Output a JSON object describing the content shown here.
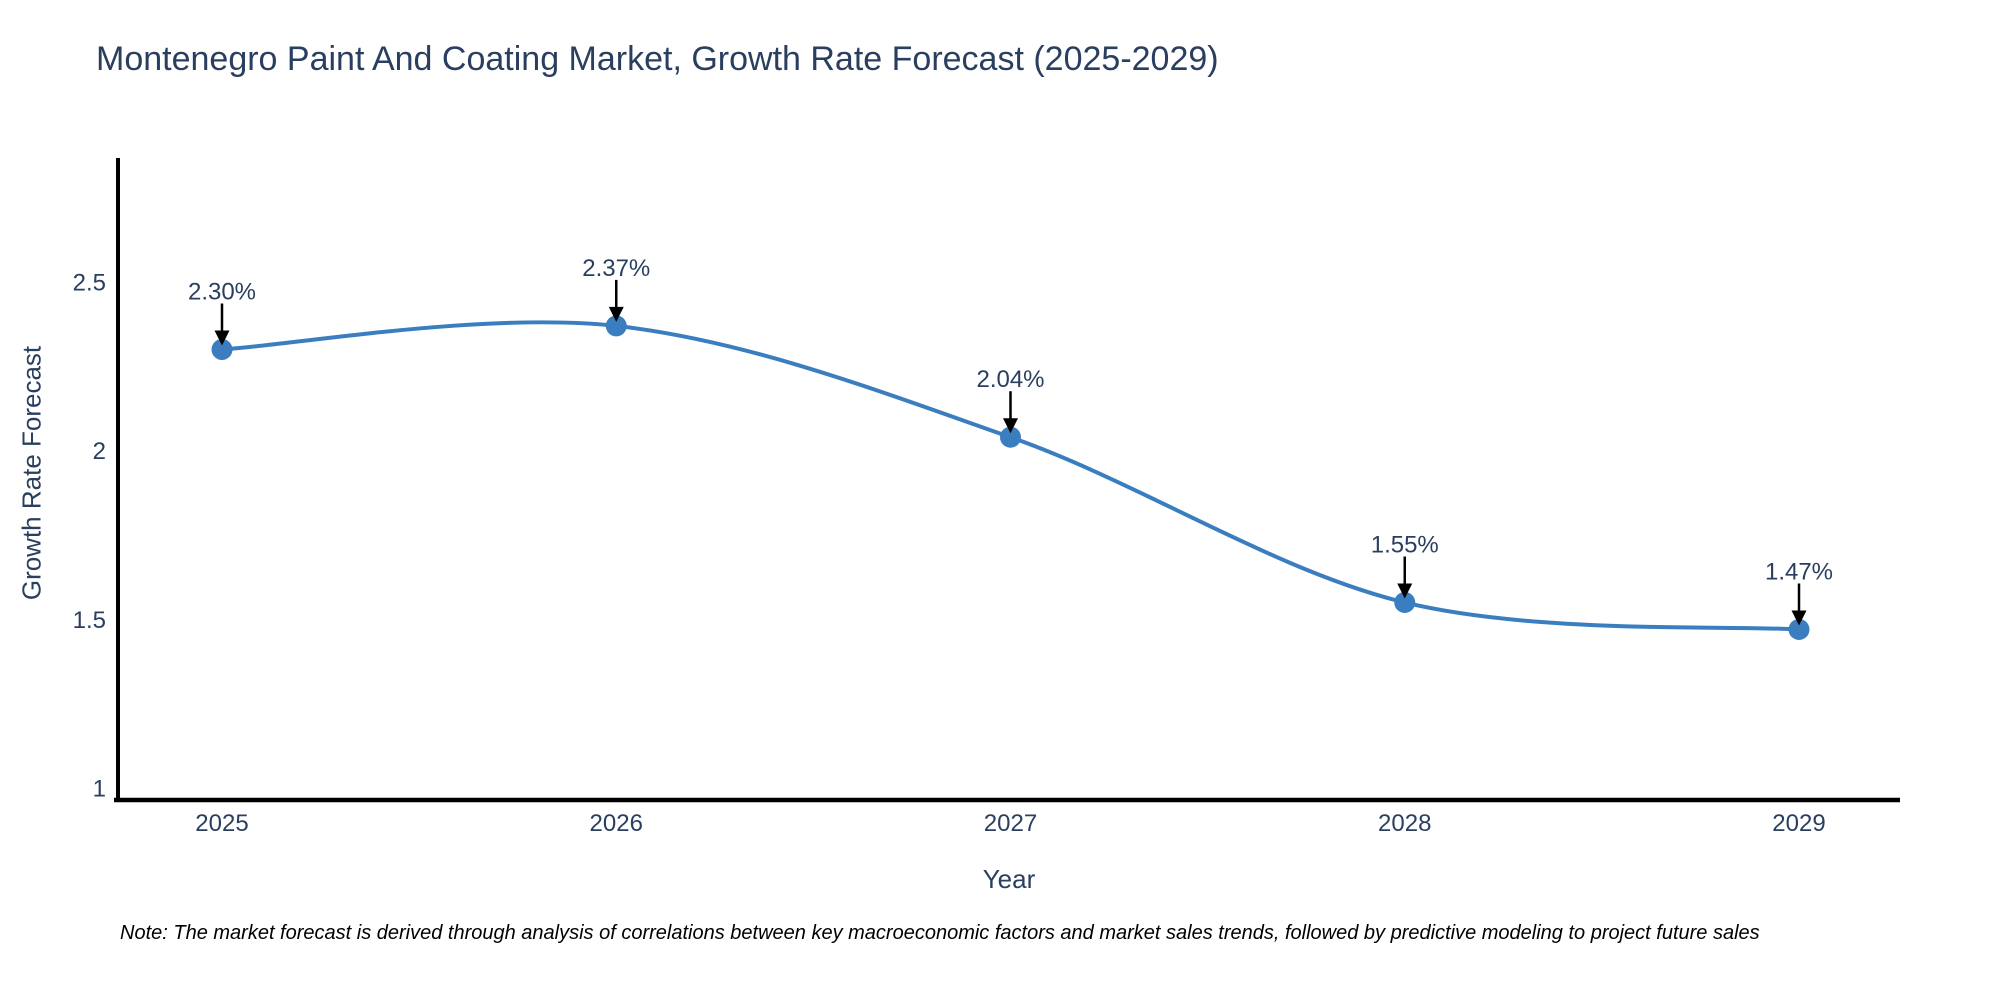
{
  "title": "Montenegro Paint And Coating Market, Growth Rate Forecast (2025-2029)",
  "note": "Note: The market forecast is derived through analysis of correlations between key macroeconomic factors and market sales trends, followed by predictive modeling to project future sales",
  "chart_data": {
    "type": "line",
    "line_shape": "spline",
    "title": "Montenegro Paint And Coating Market, Growth Rate Forecast (2025-2029)",
    "xlabel": "Year",
    "ylabel": "Growth Rate Forecast",
    "x": [
      2025,
      2026,
      2027,
      2028,
      2029
    ],
    "y": [
      2.3,
      2.37,
      2.04,
      1.55,
      1.47
    ],
    "point_labels": [
      "2.30%",
      "2.37%",
      "2.04%",
      "1.55%",
      "1.47%"
    ],
    "xtick_labels": [
      "2025",
      "2026",
      "2027",
      "2028",
      "2029"
    ],
    "ytick_values": [
      1,
      1.5,
      2,
      2.5
    ],
    "ytick_labels": [
      "1",
      "1.5",
      "2",
      "2.5"
    ],
    "ylim": [
      1,
      2.9
    ],
    "grid": false,
    "legend": "none",
    "marker": "circle",
    "colors": {
      "line": "#3a7ebf",
      "marker": "#3a7ebf",
      "axis_line": "#000000",
      "label_text": "#2a3f5f",
      "annotation_text": "#2a3f5f",
      "annotation_arrow": "#000000",
      "note_text": "#000000",
      "background": "#ffffff"
    }
  }
}
